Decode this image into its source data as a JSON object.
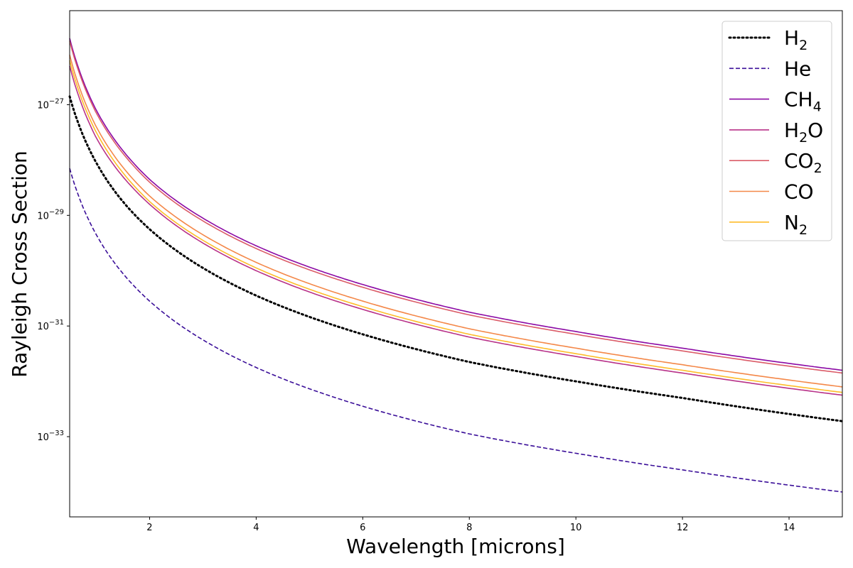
{
  "chart_data": {
    "type": "line",
    "title": "",
    "xlabel": "Wavelength [microns]",
    "ylabel": "Rayleigh Cross Section",
    "xlim": [
      0.5,
      15
    ],
    "ylim_log10": [
      -34.45,
      -25.3
    ],
    "yscale": "log",
    "x_ticks": [
      2,
      4,
      6,
      8,
      10,
      12,
      14
    ],
    "y_ticks_log10": [
      -33,
      -31,
      -29,
      -27
    ],
    "y_tick_base": "10",
    "grid": false,
    "legend_position": "top-right",
    "x": [
      0.5,
      1,
      2,
      3,
      4,
      6,
      8,
      10,
      12,
      15
    ],
    "series": [
      {
        "name": "H",
        "name_sub": "2",
        "color": "#000000",
        "dash": "dotted",
        "log10_values": [
          -26.85,
          -28.05,
          -29.25,
          -29.95,
          -30.45,
          -31.15,
          -31.65,
          -32.0,
          -32.3,
          -32.72
        ]
      },
      {
        "name": "He",
        "name_sub": "",
        "color": "#3b0f99",
        "dash": "dashed",
        "log10_values": [
          -28.15,
          -29.35,
          -30.55,
          -31.25,
          -31.75,
          -32.45,
          -32.95,
          -33.3,
          -33.6,
          -34.0
        ]
      },
      {
        "name": "CH",
        "name_sub": "4",
        "color": "#8b0aa5",
        "dash": "solid",
        "log10_values": [
          -25.8,
          -27.1,
          -28.35,
          -29.05,
          -29.55,
          -30.25,
          -30.75,
          -31.1,
          -31.4,
          -31.8
        ]
      },
      {
        "name": "H",
        "name_sub": "2",
        "name_suffix": "O",
        "color": "#b83289",
        "dash": "solid",
        "log10_values": [
          -26.3,
          -27.6,
          -28.8,
          -29.5,
          -30.0,
          -30.7,
          -31.2,
          -31.55,
          -31.85,
          -32.25
        ]
      },
      {
        "name": "CO",
        "name_sub": "2",
        "color": "#db5c68",
        "dash": "solid",
        "log10_values": [
          -25.85,
          -27.15,
          -28.4,
          -29.1,
          -29.6,
          -30.3,
          -30.8,
          -31.15,
          -31.45,
          -31.85
        ]
      },
      {
        "name": "CO",
        "name_sub": "",
        "color": "#f48849",
        "dash": "solid",
        "log10_values": [
          -26.1,
          -27.4,
          -28.65,
          -29.35,
          -29.85,
          -30.55,
          -31.05,
          -31.4,
          -31.7,
          -32.1
        ]
      },
      {
        "name": "N",
        "name_sub": "2",
        "color": "#febc2a",
        "dash": "solid",
        "log10_values": [
          -26.2,
          -27.5,
          -28.75,
          -29.45,
          -29.95,
          -30.65,
          -31.15,
          -31.5,
          -31.8,
          -32.2
        ]
      }
    ]
  }
}
